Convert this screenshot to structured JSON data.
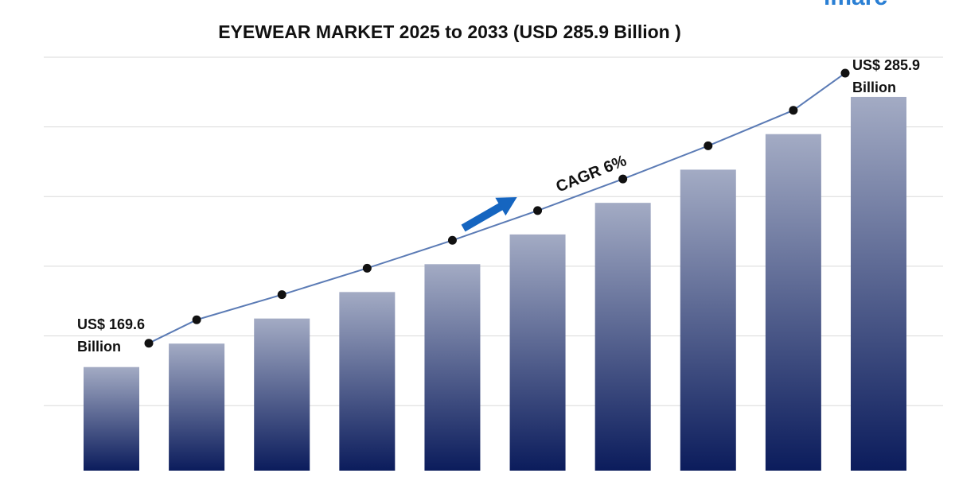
{
  "logo": "imarc",
  "chart_data": {
    "type": "bar",
    "title": "EYEWEAR MARKET 2025 to 2033 (USD 285.9 Billion )",
    "values": [
      169.6,
      179.7,
      190.5,
      201.9,
      213.9,
      226.7,
      240.3,
      254.6,
      269.9,
      285.9
    ],
    "ylim": [
      125,
      303
    ],
    "yticks": [
      153,
      183,
      213,
      243,
      273,
      303
    ],
    "grid": true,
    "color_top": "#a3abc4",
    "color_bottom": "#0b1c5c",
    "line_color": "#5b7bb5",
    "annotations": [
      [
        "US$ 169.6",
        "Billion"
      ],
      [
        "US$ 285.9",
        "Billion"
      ]
    ],
    "cagr": "CAGR 6%"
  }
}
